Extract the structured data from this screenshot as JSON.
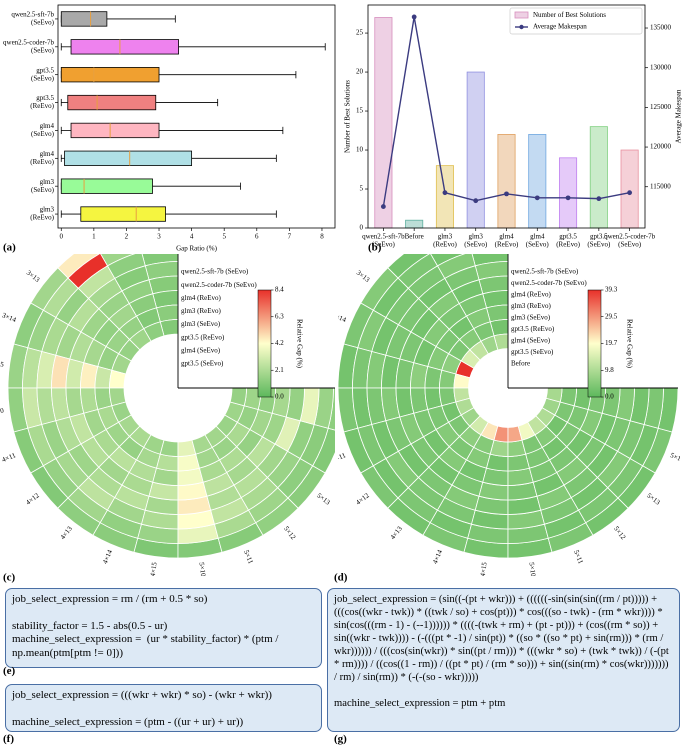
{
  "chart_data": [
    {
      "type": "box",
      "panel": "(a)",
      "xlabel": "Gap Ratio (%)",
      "categories": [
        [
          "qwen2.5-sft-7b",
          "(SeEvo)"
        ],
        [
          "qwen2.5-coder-7b",
          "(SeEvo)"
        ],
        [
          "gpt3.5",
          "(SeEvo)"
        ],
        [
          "gpt3.5",
          "(ReEvo)"
        ],
        [
          "glm4",
          "(SeEvo)"
        ],
        [
          "glm4",
          "(ReEvo)"
        ],
        [
          "glm3",
          "(SeEvo)"
        ],
        [
          "glm3",
          "(ReEvo)"
        ]
      ],
      "values": [
        {
          "whislo": 0,
          "q1": 0,
          "med": 0.9,
          "q3": 1.4,
          "whishi": 3.5
        },
        {
          "whislo": 0,
          "q1": 0.3,
          "med": 1.8,
          "q3": 3.6,
          "whishi": 8.1
        },
        {
          "whislo": 0,
          "q1": 0,
          "med": 1.0,
          "q3": 3.0,
          "whishi": 7.2
        },
        {
          "whislo": 0,
          "q1": 0.2,
          "med": 1.1,
          "q3": 2.9,
          "whishi": 4.8
        },
        {
          "whislo": 0,
          "q1": 0.3,
          "med": 1.5,
          "q3": 3.0,
          "whishi": 6.8
        },
        {
          "whislo": 0,
          "q1": 0.1,
          "med": 2.1,
          "q3": 4.0,
          "whishi": 6.6
        },
        {
          "whislo": 0,
          "q1": 0,
          "med": 0.7,
          "q3": 2.8,
          "whishi": 5.5
        },
        {
          "whislo": 0,
          "q1": 0.6,
          "med": 2.3,
          "q3": 3.2,
          "whishi": 6.6
        }
      ],
      "colors": [
        "#a9a9a9",
        "#ee82ee",
        "#f0a030",
        "#f08080",
        "#ffb6c1",
        "#b0e0e6",
        "#98fb98",
        "#f5f540"
      ],
      "median_color": "#e8a040",
      "xlim": [
        -0.1,
        8.4
      ],
      "xticks": [
        0,
        1,
        2,
        3,
        4,
        5,
        6,
        7,
        8
      ]
    },
    {
      "type": "bar_line",
      "panel": "(b)",
      "ylabel": "Number of Best Solutions",
      "y2label": "Average Makespan",
      "categories": [
        [
          "qwen2.5-sft-7b",
          "(SeEvo)"
        ],
        [
          "Before"
        ],
        [
          "glm3",
          "(ReEvo)"
        ],
        [
          "glm3",
          "(SeEvo)"
        ],
        [
          "glm4",
          "(ReEvo)"
        ],
        [
          "glm4",
          "(SeEvo)"
        ],
        [
          "gpt3.5",
          "(ReEvo)"
        ],
        [
          "gpt3.5",
          "(SeEvo)"
        ],
        [
          "qwen2.5-coder-7b",
          "(SeEvo)"
        ]
      ],
      "series": [
        {
          "name": "Number of Best Solutions",
          "type": "bar",
          "colors": [
            "#d78fbe",
            "#5fb0a0",
            "#e0c050",
            "#9090e0",
            "#e0a060",
            "#70a8e0",
            "#c080f0",
            "#80d080",
            "#e8909f"
          ],
          "values": [
            27,
            1,
            8,
            20,
            12,
            12,
            9,
            13,
            10
          ]
        },
        {
          "name": "Average Makespan",
          "type": "line",
          "axis": "y2",
          "color": "#3b3b80",
          "values": [
            112500,
            136400,
            114250,
            113240,
            114100,
            113600,
            113600,
            113500,
            114250
          ]
        }
      ],
      "ylim": [
        0,
        28.6
      ],
      "yticks": [
        0,
        5,
        10,
        15,
        20,
        25
      ],
      "y2lim": [
        109800,
        137900
      ],
      "y2ticks": [
        115000,
        120000,
        125000,
        130000,
        135000
      ],
      "legend": "upper right"
    },
    {
      "type": "polar_heatmap",
      "panel": "(c)",
      "colorbar_label": "Relative Gap (%)",
      "categories": [
        "3×10",
        "3×11",
        "3×12",
        "3×13",
        "3×14",
        "3×15",
        "4×10",
        "4×11",
        "4×12",
        "4×13",
        "4×14",
        "4×15",
        "5×10",
        "5×11",
        "5×12",
        "5×13",
        "5×14",
        "5×15"
      ],
      "series": [
        {
          "name": "qwen2.5-sft-7b (SeEvo)",
          "values": [
            1.2,
            1.5,
            4.6,
            1.8,
            1.3,
            1.6,
            1.4,
            1.1,
            1.0,
            1.3,
            1.2,
            0.9,
            1.0,
            1.1,
            1.4,
            1.2,
            1.0,
            1.3
          ]
        },
        {
          "name": "qwen2.5-coder-7b (SeEvo)",
          "values": [
            0.8,
            1.7,
            8.4,
            2.2,
            1.6,
            2.4,
            2.8,
            2.0,
            1.5,
            1.8,
            1.4,
            1.6,
            3.6,
            2.0,
            1.7,
            1.3,
            1.2,
            1.6
          ]
        },
        {
          "name": "glm4 (ReEvo)",
          "values": [
            1.0,
            1.3,
            2.6,
            1.5,
            2.0,
            3.2,
            2.2,
            1.6,
            1.9,
            2.5,
            1.8,
            2.1,
            4.2,
            2.6,
            2.0,
            1.6,
            1.4,
            3.6
          ]
        },
        {
          "name": "glm3 (ReEvo)",
          "values": [
            1.3,
            1.1,
            1.9,
            2.3,
            1.8,
            4.8,
            2.5,
            2.2,
            1.7,
            2.1,
            2.4,
            1.9,
            4.6,
            2.2,
            2.3,
            1.8,
            3.4,
            1.5
          ]
        },
        {
          "name": "glm3 (SeEvo)",
          "values": [
            1.1,
            1.4,
            1.6,
            1.7,
            2.2,
            3.0,
            1.9,
            2.6,
            2.3,
            1.8,
            2.0,
            2.7,
            4.3,
            2.5,
            1.9,
            2.4,
            1.7,
            1.9
          ]
        },
        {
          "name": "gpt3.5 (ReEvo)",
          "values": [
            0.9,
            1.2,
            1.8,
            1.4,
            1.9,
            4.5,
            2.1,
            1.8,
            2.0,
            2.4,
            2.2,
            1.8,
            3.9,
            2.0,
            2.1,
            1.5,
            1.8,
            1.4
          ]
        },
        {
          "name": "glm4 (SeEvo)",
          "values": [
            1.2,
            1.0,
            1.5,
            1.6,
            1.5,
            2.8,
            1.6,
            2.0,
            1.7,
            1.5,
            1.9,
            2.3,
            4.0,
            1.8,
            1.6,
            2.0,
            1.5,
            1.7
          ]
        },
        {
          "name": "gpt3.5 (SeEvo)",
          "values": [
            1.0,
            1.3,
            1.7,
            1.5,
            1.8,
            4.2,
            1.8,
            1.6,
            1.9,
            2.0,
            1.7,
            1.6,
            3.5,
            1.9,
            1.8,
            1.6,
            1.7,
            1.5
          ]
        }
      ],
      "clim": [
        0,
        8.4
      ],
      "cticks": [
        {
          "value": 0,
          "label": "0.0"
        },
        2.1,
        4.2,
        6.3,
        8.4
      ],
      "colormap": [
        "#5cb85c",
        "#ffffcc",
        "#e8302a"
      ]
    },
    {
      "type": "polar_heatmap",
      "panel": "(d)",
      "colorbar_label": "Relative Gap (%)",
      "categories": [
        "3×10",
        "3×11",
        "3×12",
        "3×13",
        "3×14",
        "3×15",
        "4×10",
        "4×11",
        "4×12",
        "4×13",
        "4×14",
        "4×15",
        "5×10",
        "5×11",
        "5×12",
        "5×13",
        "5×14",
        "5×15"
      ],
      "series": [
        {
          "name": "qwen2.5-sft-7b (SeEvo)",
          "values": [
            3,
            4,
            3,
            5,
            4,
            3,
            4,
            3,
            4,
            3,
            4,
            3,
            3,
            4,
            3,
            3,
            4,
            3
          ]
        },
        {
          "name": "qwen2.5-coder-7b (SeEvo)",
          "values": [
            4,
            3,
            4,
            3,
            5,
            4,
            3,
            4,
            3,
            4,
            3,
            4,
            4,
            3,
            4,
            4,
            3,
            4
          ]
        },
        {
          "name": "glm4 (ReEvo)",
          "values": [
            3,
            5,
            4,
            4,
            3,
            5,
            4,
            3,
            5,
            4,
            4,
            3,
            5,
            4,
            3,
            5,
            4,
            3
          ]
        },
        {
          "name": "glm3 (ReEvo)",
          "values": [
            5,
            4,
            3,
            4,
            4,
            3,
            5,
            4,
            3,
            4,
            5,
            4,
            3,
            5,
            4,
            3,
            4,
            5
          ]
        },
        {
          "name": "glm3 (SeEvo)",
          "values": [
            4,
            3,
            5,
            3,
            4,
            4,
            3,
            5,
            4,
            3,
            4,
            5,
            4,
            3,
            5,
            4,
            3,
            4
          ]
        },
        {
          "name": "gpt3.5 (ReEvo)",
          "values": [
            3,
            4,
            4,
            5,
            3,
            6,
            4,
            4,
            3,
            5,
            3,
            4,
            5,
            4,
            4,
            3,
            5,
            4
          ]
        },
        {
          "name": "glm4 (SeEvo)",
          "values": [
            4,
            5,
            3,
            4,
            5,
            4,
            3,
            4,
            5,
            4,
            5,
            3,
            4,
            4,
            3,
            4,
            4,
            3
          ]
        },
        {
          "name": "gpt3.5 (SeEvo)",
          "values": [
            3,
            4,
            5,
            4,
            6,
            5,
            4,
            3,
            4,
            6,
            5,
            8,
            6,
            4,
            5,
            3,
            4,
            4
          ]
        },
        {
          "name": "Before",
          "values": [
            10,
            8,
            12,
            15,
            39.3,
            20,
            12,
            10,
            8,
            14,
            22,
            30,
            28,
            18,
            12,
            10,
            8,
            9
          ]
        }
      ],
      "clim": [
        0,
        39.3
      ],
      "cticks": [
        {
          "value": 0,
          "label": "0.0"
        },
        9.8,
        19.7,
        29.5,
        39.3
      ],
      "colormap": [
        "#5cb85c",
        "#ffffcc",
        "#e8302a"
      ]
    }
  ],
  "text_panels": [
    {
      "panel": "(e)",
      "paragraphs": [
        [
          "job_select_expression = rm / (rm + 0.5 * so)"
        ],
        [
          "stability_factor = 1.5 - abs(0.5 - ur)",
          "machine_select_expression =  (ur * stability_factor) * (ptm / np.mean(ptm[ptm != 0]))"
        ]
      ]
    },
    {
      "panel": "(f)",
      "paragraphs": [
        [
          "job_select_expression = (((wkr + wkr) * so) - (wkr + wkr))"
        ],
        [
          "machine_select_expression = (ptm - ((ur + ur) + ur))"
        ]
      ]
    },
    {
      "panel": "(g)",
      "paragraphs": [
        [
          "job_select_expression = (sin((-(pt + wkr))) + ((((((-sin(sin(sin((rm / pt))))) + (((cos((wkr - twk)) * ((twk / so) + cos(pt))) * cos(((so - twk) - (rm * wkr)))) * sin(cos(((rm - 1) - (--1)))))) * ((((-(twk + rm) + (pt - pt))) + (cos((rm * so)) + sin((wkr - twk)))) - (-(((pt * -1) / sin(pt)) * ((so * ((so * pt) + sin(rm))) * (rm / wkr)))))) / (((cos(sin(wkr)) * sin((pt / rm))) * (((wkr * so) + (twk * twk)) / (-(pt * rm)))) / ((cos((1 - rm)) / ((pt * pt) / (rm * so))) + sin((sin(rm) * cos(wkr))))))) / rm) / sin(rm)) * (-(-(so - wkr)))))"
        ],
        [
          "machine_select_expression = ptm + ptm"
        ]
      ]
    }
  ]
}
